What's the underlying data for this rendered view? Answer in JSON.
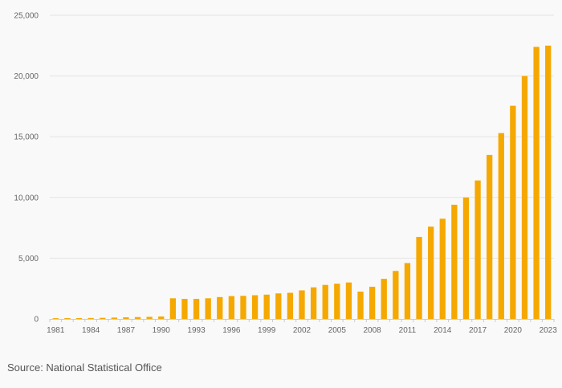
{
  "chart_data": {
    "type": "bar",
    "title": "",
    "xlabel": "",
    "ylabel": "",
    "ylim": [
      0,
      25000
    ],
    "yticks": [
      0,
      5000,
      10000,
      15000,
      20000,
      25000
    ],
    "ytick_labels": [
      "0",
      "5,000",
      "10,000",
      "15,000",
      "20,000",
      "25,000"
    ],
    "xtick_labels": [
      "1981",
      "1984",
      "1987",
      "1990",
      "1993",
      "1996",
      "1999",
      "2002",
      "2005",
      "2008",
      "2011",
      "2014",
      "2017",
      "2020",
      "2023"
    ],
    "grid": "horizontal",
    "bar_color": "#f5a800",
    "categories": [
      "1981",
      "1982",
      "1983",
      "1984",
      "1985",
      "1986",
      "1987",
      "1988",
      "1989",
      "1990",
      "1991",
      "1992",
      "1993",
      "1994",
      "1995",
      "1996",
      "1997",
      "1998",
      "1999",
      "2000",
      "2001",
      "2002",
      "2003",
      "2004",
      "2005",
      "2006",
      "2007",
      "2008",
      "2009",
      "2010",
      "2011",
      "2012",
      "2013",
      "2014",
      "2015",
      "2016",
      "2017",
      "2018",
      "2019",
      "2020",
      "2021",
      "2022",
      "2023"
    ],
    "values": [
      60,
      65,
      70,
      75,
      90,
      110,
      130,
      150,
      170,
      200,
      1700,
      1650,
      1650,
      1700,
      1800,
      1880,
      1900,
      1950,
      2000,
      2100,
      2150,
      2350,
      2600,
      2800,
      2900,
      3000,
      2250,
      2650,
      3300,
      3950,
      4600,
      6750,
      7600,
      8250,
      9400,
      10000,
      11400,
      13500,
      15300,
      17550,
      20000,
      22400,
      22500
    ]
  },
  "source": "Source: National Statistical Office"
}
